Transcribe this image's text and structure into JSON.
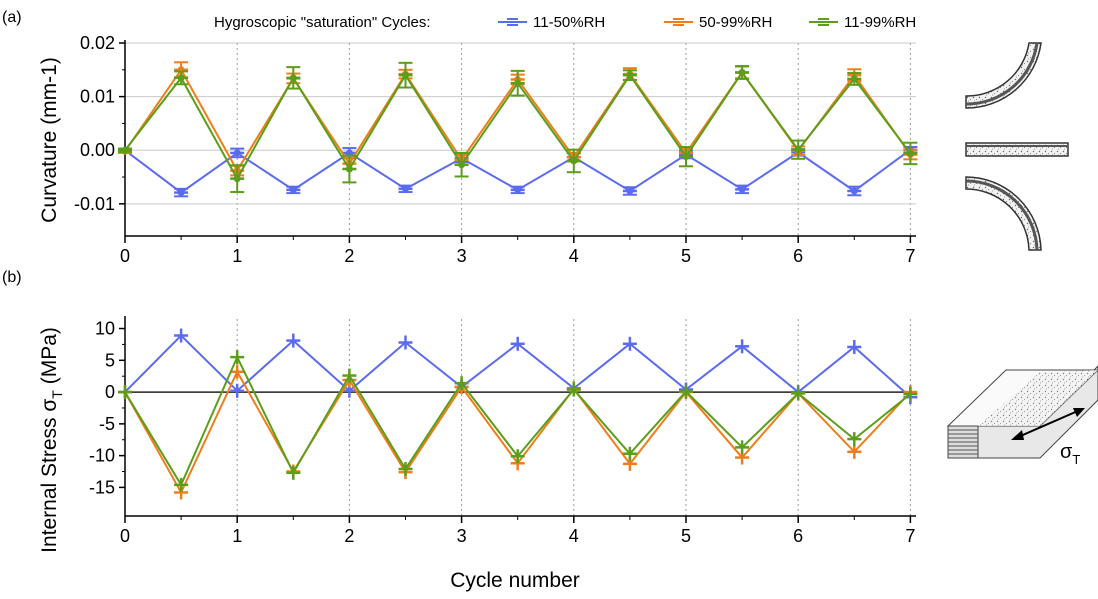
{
  "legend": {
    "title": "Hygroscopic \"saturation\" Cycles:",
    "colors": [
      "#5b6bf0",
      "#f07d1a",
      "#5a9e1a"
    ]
  },
  "shared_xlabel": "Cycle number",
  "chart_data": [
    {
      "type": "line",
      "panel_label": "(a)",
      "ylabel": "Curvature (mm-1)",
      "xlabel": "",
      "xlim": [
        0,
        7.05
      ],
      "ylim": [
        -0.016,
        0.02
      ],
      "x": [
        0,
        0.5,
        1,
        1.5,
        2,
        2.5,
        3,
        3.5,
        4,
        4.5,
        5,
        5.5,
        6,
        6.5,
        7
      ],
      "xticks": [
        "0",
        "1",
        "2",
        "3",
        "4",
        "5",
        "6",
        "7"
      ],
      "yticks": [
        "0.02",
        "0.01",
        "0.00",
        "-0.01"
      ],
      "ytick_values": [
        0.02,
        0.01,
        0.0,
        -0.01
      ],
      "grid": "vertical dotted",
      "legend_position": "top",
      "series": [
        {
          "name": "11-50%RH",
          "color": "#5b6bf0",
          "values": [
            0,
            -0.0079,
            -0.0005,
            -0.0074,
            -0.0005,
            -0.0072,
            -0.0015,
            -0.0074,
            -0.0013,
            -0.0076,
            -0.0008,
            -0.0073,
            -0.0004,
            -0.0076,
            0.0001
          ],
          "errors": [
            0.0003,
            0.0007,
            0.0008,
            0.0006,
            0.0009,
            0.0006,
            0.0007,
            0.0006,
            0.0007,
            0.0007,
            0.0007,
            0.0007,
            0.0006,
            0.0008,
            0.0005
          ]
        },
        {
          "name": "50-99%RH",
          "color": "#f07d1a",
          "values": [
            -0.0002,
            0.015,
            -0.0038,
            0.0134,
            -0.0025,
            0.0142,
            -0.0018,
            0.0132,
            -0.0013,
            0.0142,
            -0.0005,
            0.0145,
            -0.0001,
            0.014,
            -0.0008
          ],
          "errors": [
            0.0003,
            0.0014,
            0.0009,
            0.0009,
            0.001,
            0.0008,
            0.0009,
            0.0009,
            0.0008,
            0.0011,
            0.0008,
            0.0011,
            0.0008,
            0.0011,
            0.0009
          ]
        },
        {
          "name": "11-99%RH",
          "color": "#5a9e1a",
          "values": [
            0,
            0.0135,
            -0.0053,
            0.0135,
            -0.0035,
            0.014,
            -0.0027,
            0.0125,
            -0.002,
            0.014,
            -0.0012,
            0.0145,
            0.0001,
            0.0133,
            -0.0006
          ],
          "errors": [
            0.0003,
            0.0012,
            0.0025,
            0.002,
            0.0025,
            0.0023,
            0.0022,
            0.0023,
            0.0021,
            0.0009,
            0.0018,
            0.0012,
            0.0017,
            0.0011,
            0.002
          ]
        }
      ]
    },
    {
      "type": "line",
      "panel_label": "(b)",
      "ylabel": "Internal Stress σ",
      "ylabel_sub": "T",
      "ylabel_suffix": " (MPa)",
      "xlabel": "Cycle number",
      "xlim": [
        0,
        7.05
      ],
      "ylim": [
        -19.5,
        11.5
      ],
      "x": [
        0,
        0.5,
        1,
        1.5,
        2,
        2.5,
        3,
        3.5,
        4,
        4.5,
        5,
        5.5,
        6,
        6.5,
        7
      ],
      "xticks": [
        "0",
        "1",
        "2",
        "3",
        "4",
        "5",
        "6",
        "7"
      ],
      "yticks": [
        "10",
        "5",
        "0",
        "-5",
        "-10",
        "-15"
      ],
      "ytick_values": [
        10,
        5,
        0,
        -5,
        -10,
        -15
      ],
      "grid": "vertical dotted, zero line",
      "series": [
        {
          "name": "11-50%RH",
          "color": "#5b6bf0",
          "values": [
            0,
            8.9,
            0.2,
            8.1,
            0.2,
            7.8,
            0.8,
            7.6,
            0.6,
            7.6,
            0.4,
            7.2,
            0,
            7.1,
            -0.8
          ]
        },
        {
          "name": "50-99%RH",
          "color": "#f07d1a",
          "values": [
            0,
            -15.8,
            3.2,
            -12.5,
            1.9,
            -12.6,
            0.8,
            -11.2,
            0.5,
            -11.3,
            0,
            -10.3,
            -0.2,
            -9.4,
            0
          ]
        },
        {
          "name": "11-99%RH",
          "color": "#5a9e1a",
          "values": [
            0,
            -14.6,
            5.5,
            -12.7,
            2.6,
            -12.1,
            1.4,
            -10.1,
            0.4,
            -9.7,
            0.1,
            -8.7,
            -0.2,
            -7.4,
            -0.3
          ]
        }
      ]
    }
  ],
  "annotations": {
    "sigma_symbol": "σ",
    "sigma_sub": "T"
  }
}
